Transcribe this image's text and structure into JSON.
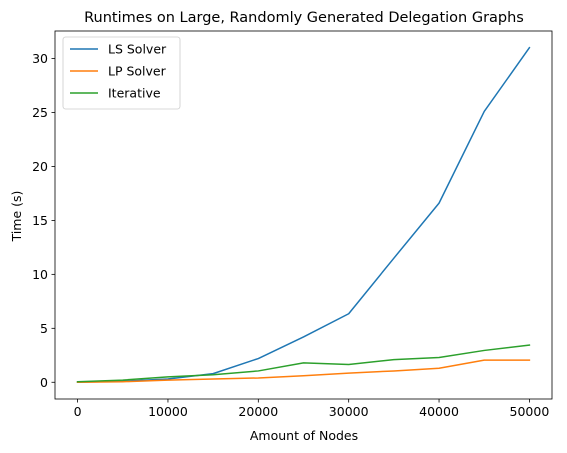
{
  "chart_data": {
    "type": "line",
    "title": "Runtimes on Large, Randomly Generated Delegation Graphs",
    "xlabel": "Amount of Nodes",
    "ylabel": "Time (s)",
    "x": [
      0,
      5000,
      10000,
      15000,
      20000,
      25000,
      30000,
      35000,
      40000,
      45000,
      50000
    ],
    "xlim": [
      -2500,
      52500
    ],
    "ylim": [
      -1.55,
      32.55
    ],
    "xticks": [
      0,
      10000,
      20000,
      30000,
      40000,
      50000
    ],
    "yticks": [
      0,
      5,
      10,
      15,
      20,
      25,
      30
    ],
    "grid": false,
    "legend_position": "top-left",
    "series": [
      {
        "name": "LS Solver",
        "color": "#1f77b4",
        "values": [
          0.0,
          0.1,
          0.3,
          0.8,
          2.2,
          4.2,
          6.35,
          11.5,
          16.6,
          25.1,
          31.0
        ]
      },
      {
        "name": "LP Solver",
        "color": "#ff7f0e",
        "values": [
          0.0,
          0.05,
          0.2,
          0.3,
          0.4,
          0.6,
          0.85,
          1.05,
          1.3,
          2.05,
          2.05
        ]
      },
      {
        "name": "Iterative",
        "color": "#2ca02c",
        "values": [
          0.05,
          0.2,
          0.5,
          0.7,
          1.05,
          1.8,
          1.65,
          2.1,
          2.3,
          2.95,
          3.45
        ]
      }
    ]
  }
}
